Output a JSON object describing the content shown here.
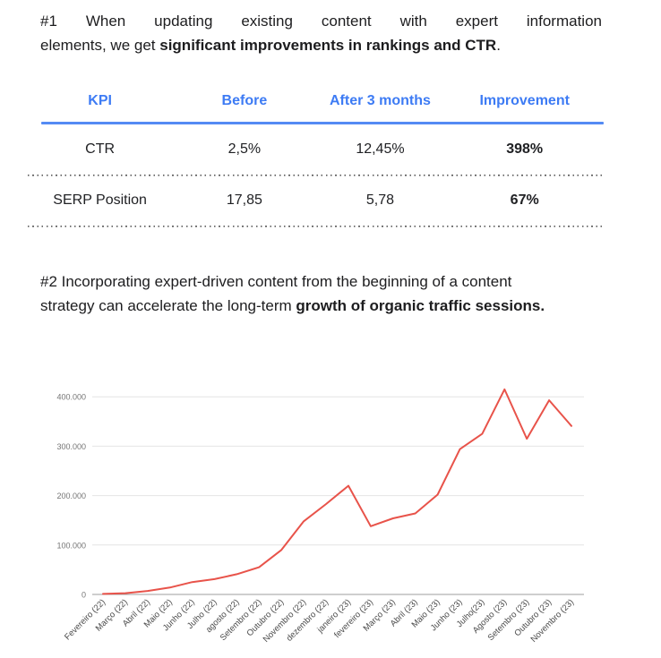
{
  "intro1": {
    "line1": "#1 When updating existing content with expert information",
    "line2_normal": "elements, we get ",
    "line2_bold": "significant improvements in rankings and CTR",
    "line2_end": "."
  },
  "kpi_table": {
    "accent_color": "#3d7bf4",
    "headers": [
      "KPI",
      "Before",
      "After 3 months",
      "Improvement"
    ],
    "rows": [
      {
        "kpi": "CTR",
        "before": "2,5%",
        "after": "12,45%",
        "improvement": "398%"
      },
      {
        "kpi": "SERP Position",
        "before": "17,85",
        "after": "5,78",
        "improvement": "67%"
      }
    ]
  },
  "intro2": {
    "line1": "#2 Incorporating expert-driven content from the beginning of a content",
    "line2_normal": "strategy can accelerate the long-term ",
    "line2_bold": "growth of organic traffic sessions."
  },
  "chart_data": {
    "type": "line",
    "title": "",
    "xlabel": "",
    "ylabel": "",
    "categories": [
      "Fevereiro (22)",
      "Março (22)",
      "Abril (22)",
      "Maio (22)",
      "Junho (22)",
      "Julho (22)",
      "agosto (22)",
      "Setembro (22)",
      "Outubro (22)",
      "Novembro (22)",
      "dezembro (22)",
      "janeiro (23)",
      "fevereiro (23)",
      "Março (23)",
      "Abril (23)",
      "Maio (23)",
      "Junho (23)",
      "Julho(23)",
      "Agosto (23)",
      "Setembro (23)",
      "Outubro (23)",
      "Novembro (23)"
    ],
    "values": [
      1000,
      2500,
      7000,
      14000,
      25000,
      31000,
      41000,
      55000,
      90000,
      148000,
      183000,
      220000,
      138000,
      154000,
      164000,
      202000,
      294000,
      325000,
      415000,
      315000,
      393000,
      341000
    ],
    "ylim": [
      0,
      400000
    ],
    "yticks": [
      0,
      100000,
      200000,
      300000,
      400000
    ],
    "ytick_labels": [
      "0",
      "100.000",
      "200.000",
      "300.000",
      "400.000"
    ],
    "grid": true,
    "legend_position": "none",
    "line_color": "#e8534a",
    "gridline_color": "#e4e4e4",
    "axis_color": "#9e9e9e",
    "ytick_label_color": "#757575",
    "xtick_label_color": "#4a4a4a"
  }
}
